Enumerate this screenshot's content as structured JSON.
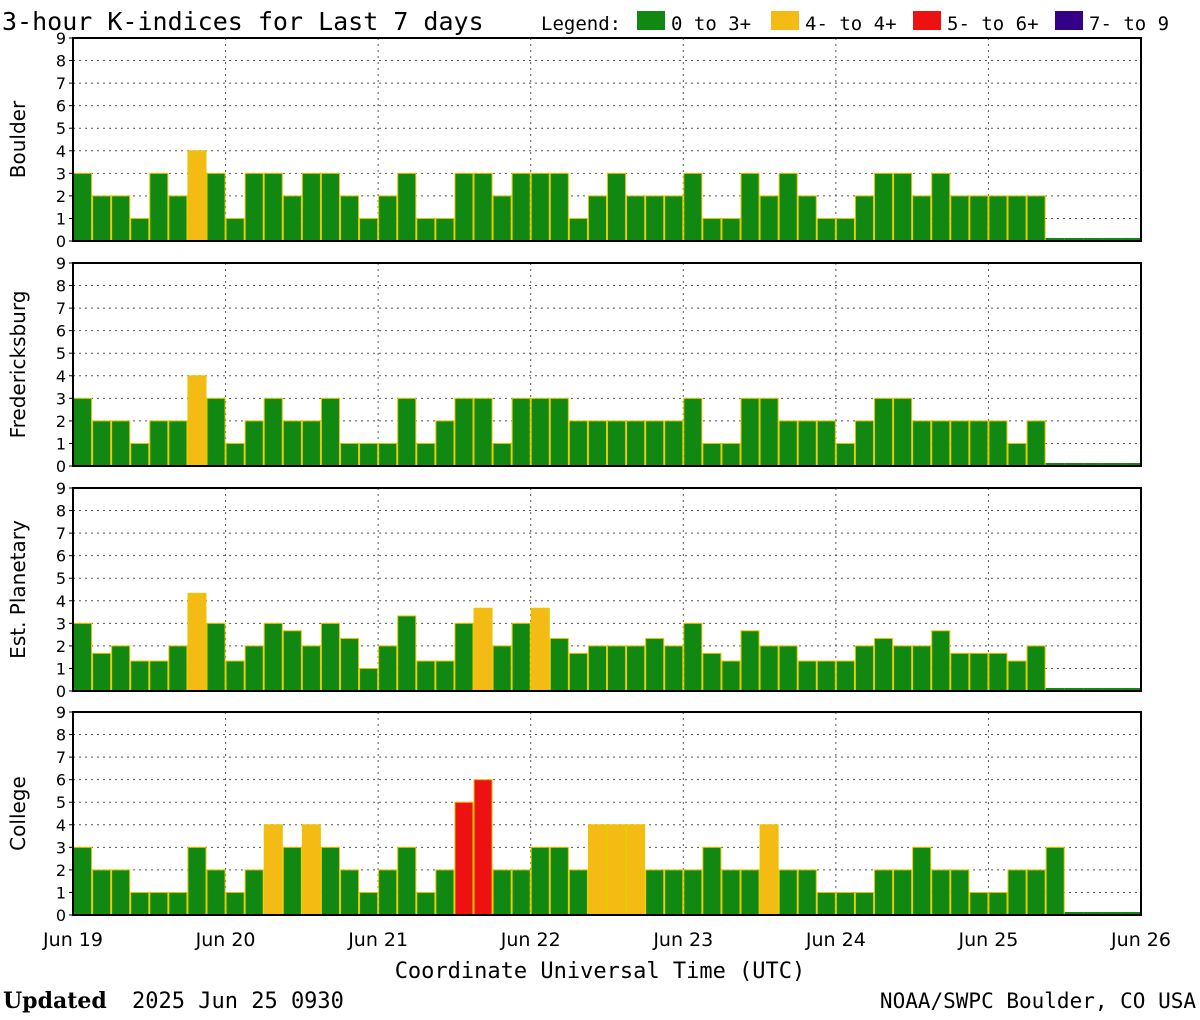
{
  "title": "3-hour K-indices for Last 7 days",
  "legend": {
    "label": "Legend:",
    "items": [
      {
        "label": "0 to 3+",
        "color": "#118811",
        "name": "green"
      },
      {
        "label": "4- to 4+",
        "color": "#f3bb14",
        "name": "yellow"
      },
      {
        "label": "5- to 6+",
        "color": "#ee1111",
        "name": "red"
      },
      {
        "label": "7- to 9",
        "color": "#330088",
        "name": "purple"
      }
    ]
  },
  "chart_data": {
    "type": "bar",
    "x_tick_labels": [
      "Jun 19",
      "Jun 20",
      "Jun 21",
      "Jun 22",
      "Jun 23",
      "Jun 24",
      "Jun 25",
      "Jun 26"
    ],
    "xlabel": "Coordinate Universal Time (UTC)",
    "y_ticks": [
      0,
      1,
      2,
      3,
      4,
      5,
      6,
      7,
      8,
      9
    ],
    "ylim": [
      0,
      9
    ],
    "bins_per_day": 8,
    "days": 7,
    "grid": true,
    "series": [
      {
        "name": "Boulder",
        "values": [
          3,
          2,
          2,
          1,
          3,
          2,
          4,
          3,
          1,
          3,
          3,
          2,
          3,
          3,
          2,
          1,
          2,
          3,
          1,
          1,
          3,
          3,
          2,
          3,
          3,
          3,
          1,
          2,
          3,
          2,
          2,
          2,
          3,
          1,
          1,
          3,
          2,
          3,
          2,
          1,
          1,
          2,
          3,
          3,
          2,
          3,
          2,
          2,
          2,
          2,
          2,
          0,
          0,
          0,
          0,
          0
        ]
      },
      {
        "name": "Fredericksburg",
        "values": [
          3,
          2,
          2,
          1,
          2,
          2,
          4,
          3,
          1,
          2,
          3,
          2,
          2,
          3,
          1,
          1,
          1,
          3,
          1,
          2,
          3,
          3,
          1,
          3,
          3,
          3,
          2,
          2,
          2,
          2,
          2,
          2,
          3,
          1,
          1,
          3,
          3,
          2,
          2,
          2,
          1,
          2,
          3,
          3,
          2,
          2,
          2,
          2,
          2,
          1,
          2,
          0,
          0,
          0,
          0,
          0
        ]
      },
      {
        "name": "Est. Planetary",
        "values": [
          3,
          1.67,
          2,
          1.33,
          1.33,
          2,
          4.33,
          3,
          1.33,
          2,
          3,
          2.67,
          2,
          3,
          2.33,
          1,
          2,
          3.33,
          1.33,
          1.33,
          3,
          3.67,
          2,
          3,
          3.67,
          2.33,
          1.67,
          2,
          2,
          2,
          2.33,
          2,
          3,
          1.67,
          1.33,
          2.67,
          2,
          2,
          1.33,
          1.33,
          1.33,
          2,
          2.33,
          2,
          2,
          2.67,
          1.67,
          1.67,
          1.67,
          1.33,
          2,
          0,
          0,
          0,
          0,
          0
        ]
      },
      {
        "name": "College",
        "values": [
          3,
          2,
          2,
          1,
          1,
          1,
          3,
          2,
          1,
          2,
          4,
          3,
          4,
          3,
          2,
          1,
          2,
          3,
          1,
          2,
          5,
          6,
          2,
          2,
          3,
          3,
          2,
          4,
          4,
          4,
          2,
          2,
          2,
          3,
          2,
          2,
          4,
          2,
          2,
          1,
          1,
          1,
          2,
          2,
          3,
          2,
          2,
          1,
          1,
          2,
          2,
          3,
          0,
          0,
          0,
          0
        ]
      }
    ]
  },
  "footer": {
    "updated_label": "Updated",
    "updated_value": "2025 Jun 25 0930",
    "source": "NOAA/SWPC Boulder, CO USA"
  }
}
